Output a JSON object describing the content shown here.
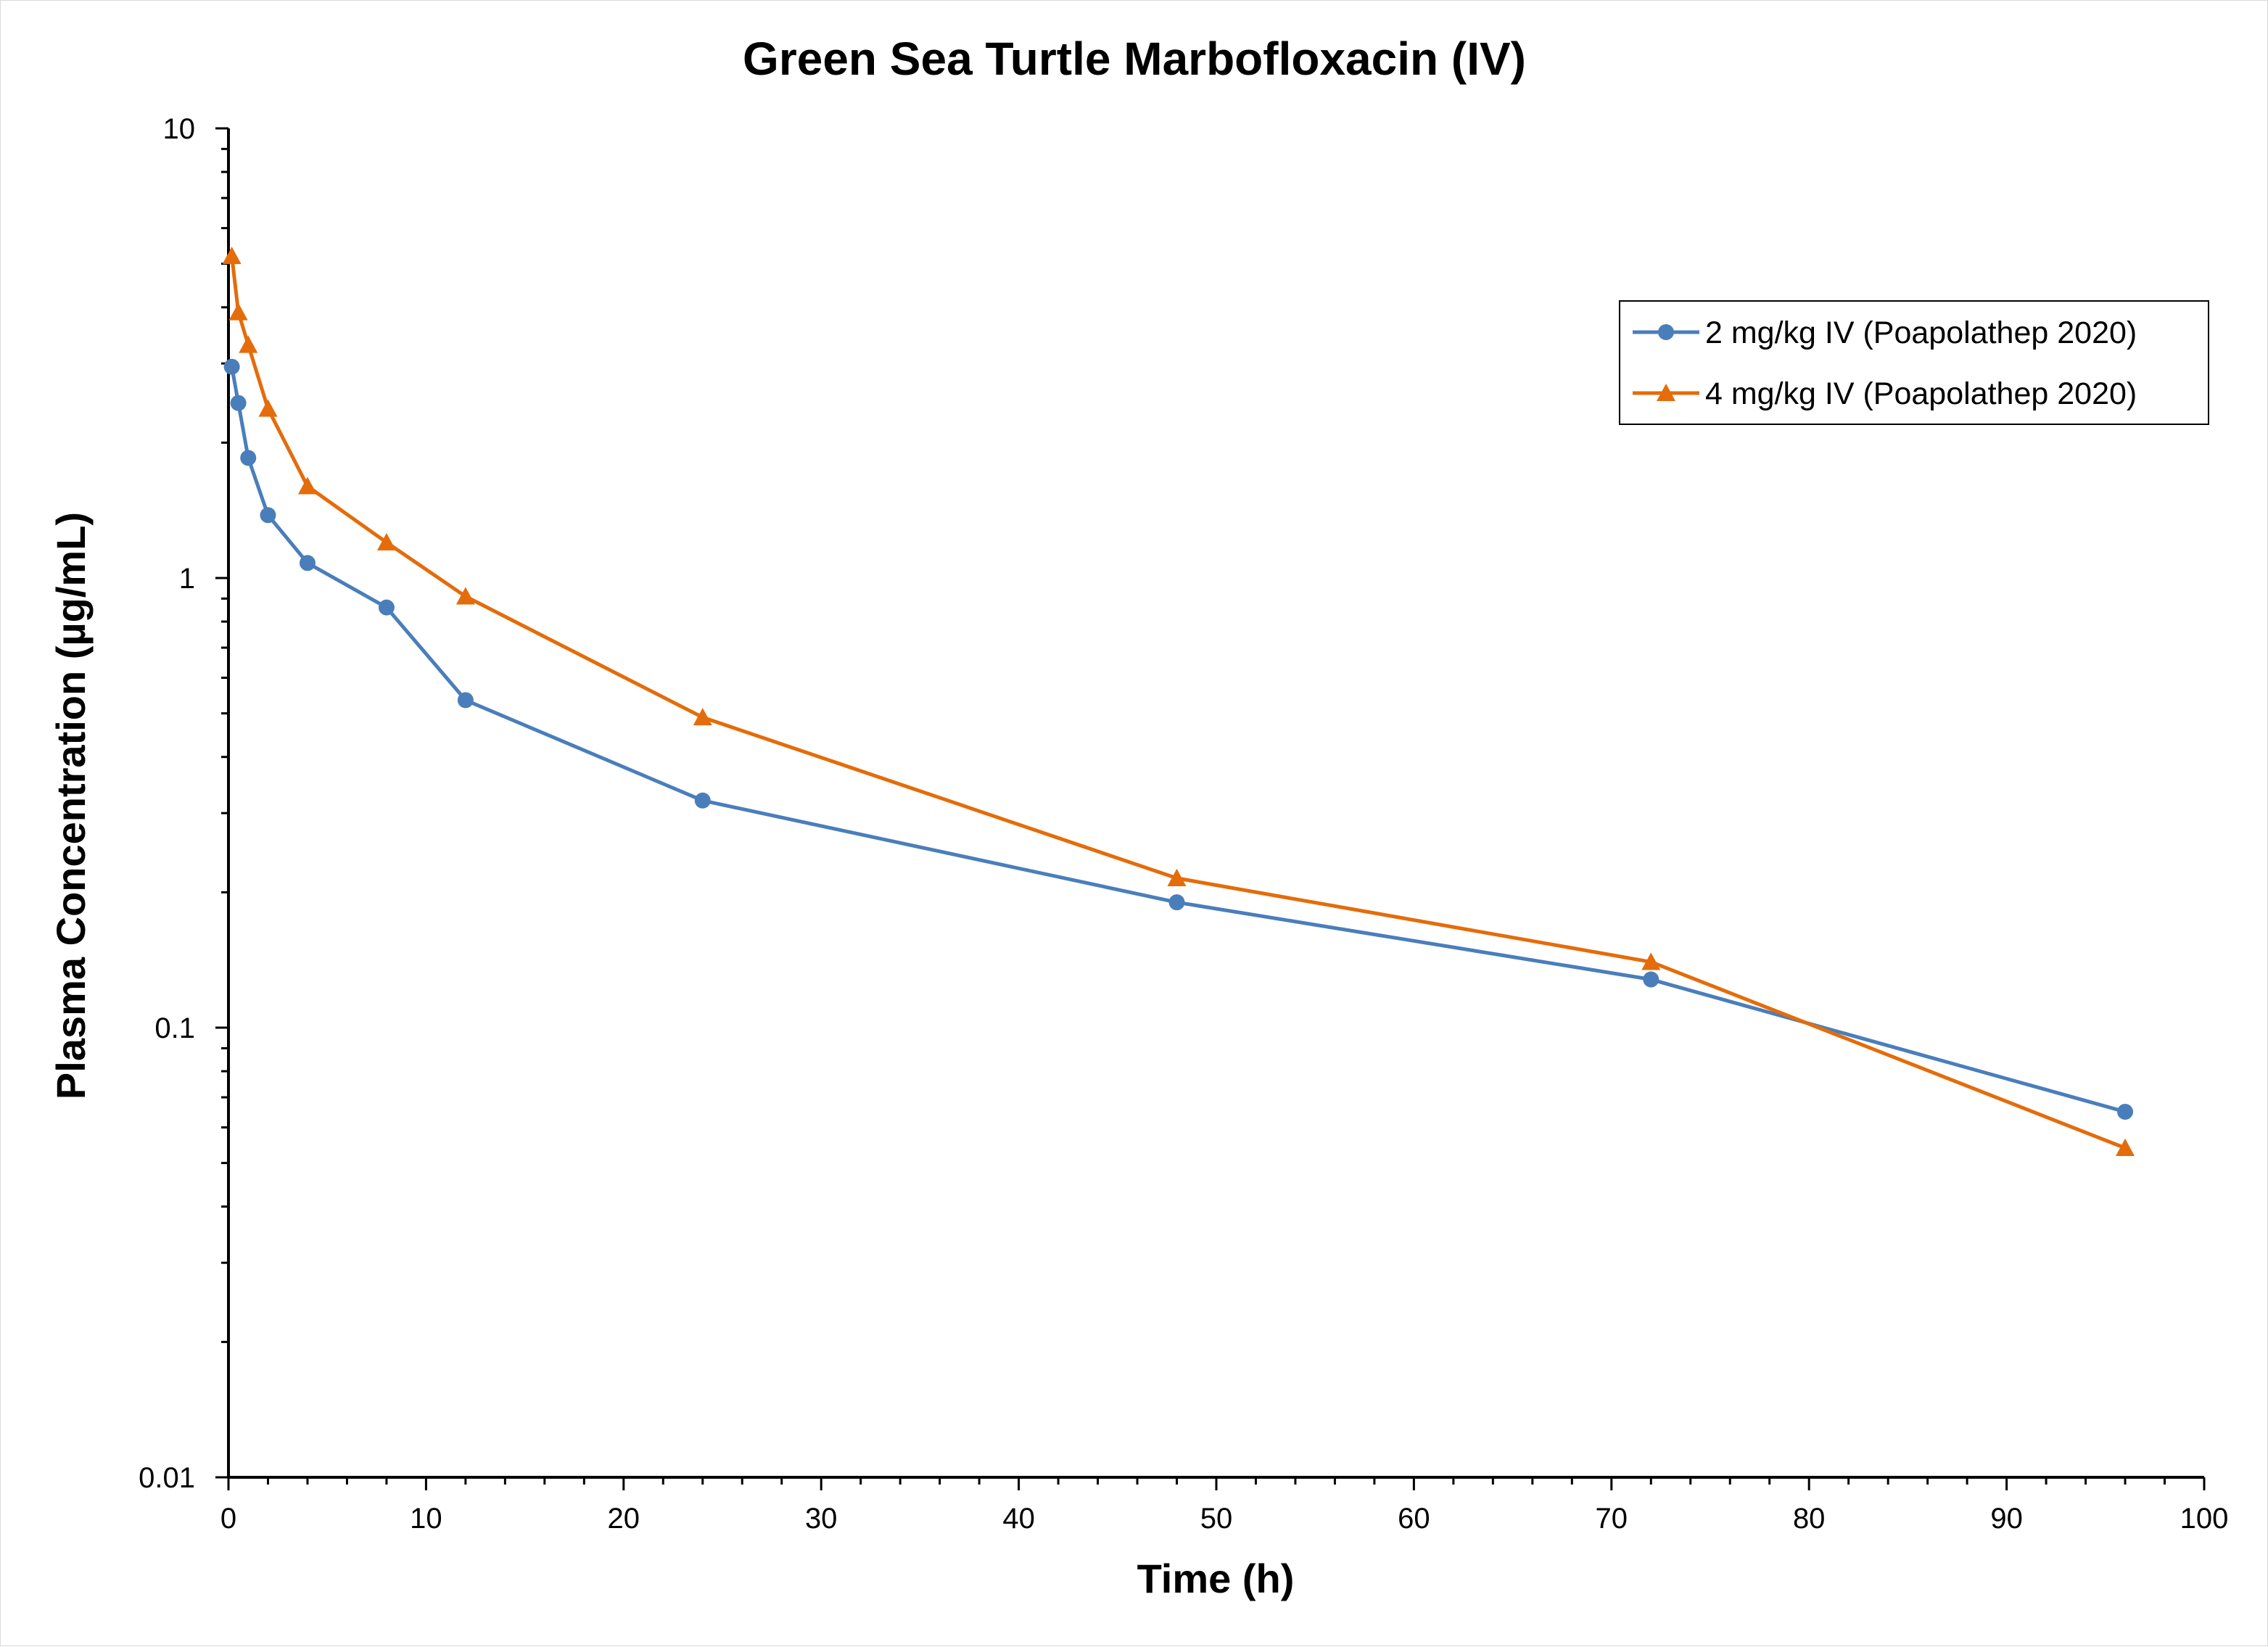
{
  "chart_data": {
    "type": "line",
    "title": "Green Sea Turtle Marbofloxacin (IV)",
    "xlabel": "Time (h)",
    "ylabel": "Plasma Concentration (µg/mL)",
    "xlim": [
      0,
      100
    ],
    "ylim": [
      0.01,
      10
    ],
    "yscale": "log",
    "x_major_ticks": [
      0,
      10,
      20,
      30,
      40,
      50,
      60,
      70,
      80,
      90,
      100
    ],
    "x_tick_labels": [
      "0",
      "10",
      "20",
      "30",
      "40",
      "50",
      "60",
      "70",
      "80",
      "90",
      "100"
    ],
    "y_major_ticks": [
      0.01,
      0.1,
      1,
      10
    ],
    "y_tick_labels": [
      "0.01",
      "0.1",
      "1",
      "10"
    ],
    "grid": false,
    "legend_position": "top-right",
    "series": [
      {
        "name": "2 mg/kg IV (Poapolathep 2020)",
        "color": "#4a7ebb",
        "marker": "circle",
        "x": [
          0.17,
          0.5,
          1,
          2,
          4,
          8,
          12,
          24,
          48,
          72,
          96
        ],
        "y": [
          2.95,
          2.45,
          1.85,
          1.38,
          1.08,
          0.86,
          0.535,
          0.32,
          0.19,
          0.128,
          0.065
        ]
      },
      {
        "name": "4 mg/kg IV (Poapolathep 2020)",
        "color": "#e46c0a",
        "marker": "triangle",
        "x": [
          0.17,
          0.5,
          1,
          2,
          4,
          8,
          12,
          24,
          48,
          72,
          96
        ],
        "y": [
          5.2,
          3.9,
          3.3,
          2.38,
          1.6,
          1.2,
          0.91,
          0.49,
          0.215,
          0.14,
          0.054
        ]
      }
    ]
  }
}
